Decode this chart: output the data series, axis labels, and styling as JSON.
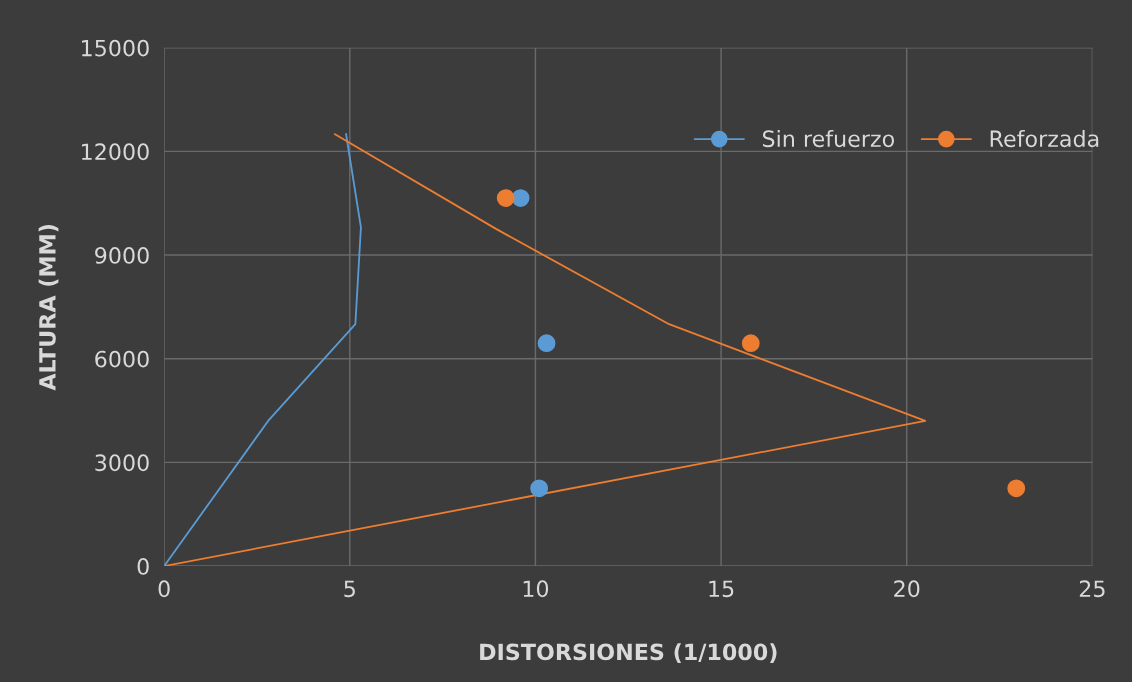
{
  "chart_data": {
    "type": "line",
    "xlabel": "DISTORSIONES (1/1000)",
    "ylabel": "ALTURA (MM)",
    "xlim": [
      0,
      25
    ],
    "ylim": [
      0,
      15000
    ],
    "xticks": [
      0,
      5,
      10,
      15,
      20,
      25
    ],
    "yticks": [
      0,
      3000,
      6000,
      9000,
      12000,
      15000
    ],
    "grid": true,
    "legend": "top right",
    "series": [
      {
        "name": "Sin refuerzo",
        "color": "#5b9bd5",
        "x": [
          0,
          2.8,
          5.15,
          5.3,
          4.9
        ],
        "values": [
          0,
          4200,
          7000,
          9800,
          12500
        ]
      },
      {
        "name": "Reforzada",
        "color": "#ed7d31",
        "x": [
          0,
          20.5,
          13.6,
          8.95,
          4.6
        ],
        "values": [
          0,
          4200,
          7000,
          9750,
          12500
        ]
      },
      {
        "type": "scatter",
        "marker": "circle",
        "color": "#5b9bd5",
        "x": [
          10.1,
          10.3,
          9.6
        ],
        "values": [
          2250,
          6450,
          10650
        ]
      },
      {
        "type": "scatter",
        "marker": "circle",
        "color": "#ed7d31",
        "x": [
          22.95,
          15.8,
          9.2
        ],
        "values": [
          2250,
          6450,
          10650
        ]
      }
    ]
  }
}
